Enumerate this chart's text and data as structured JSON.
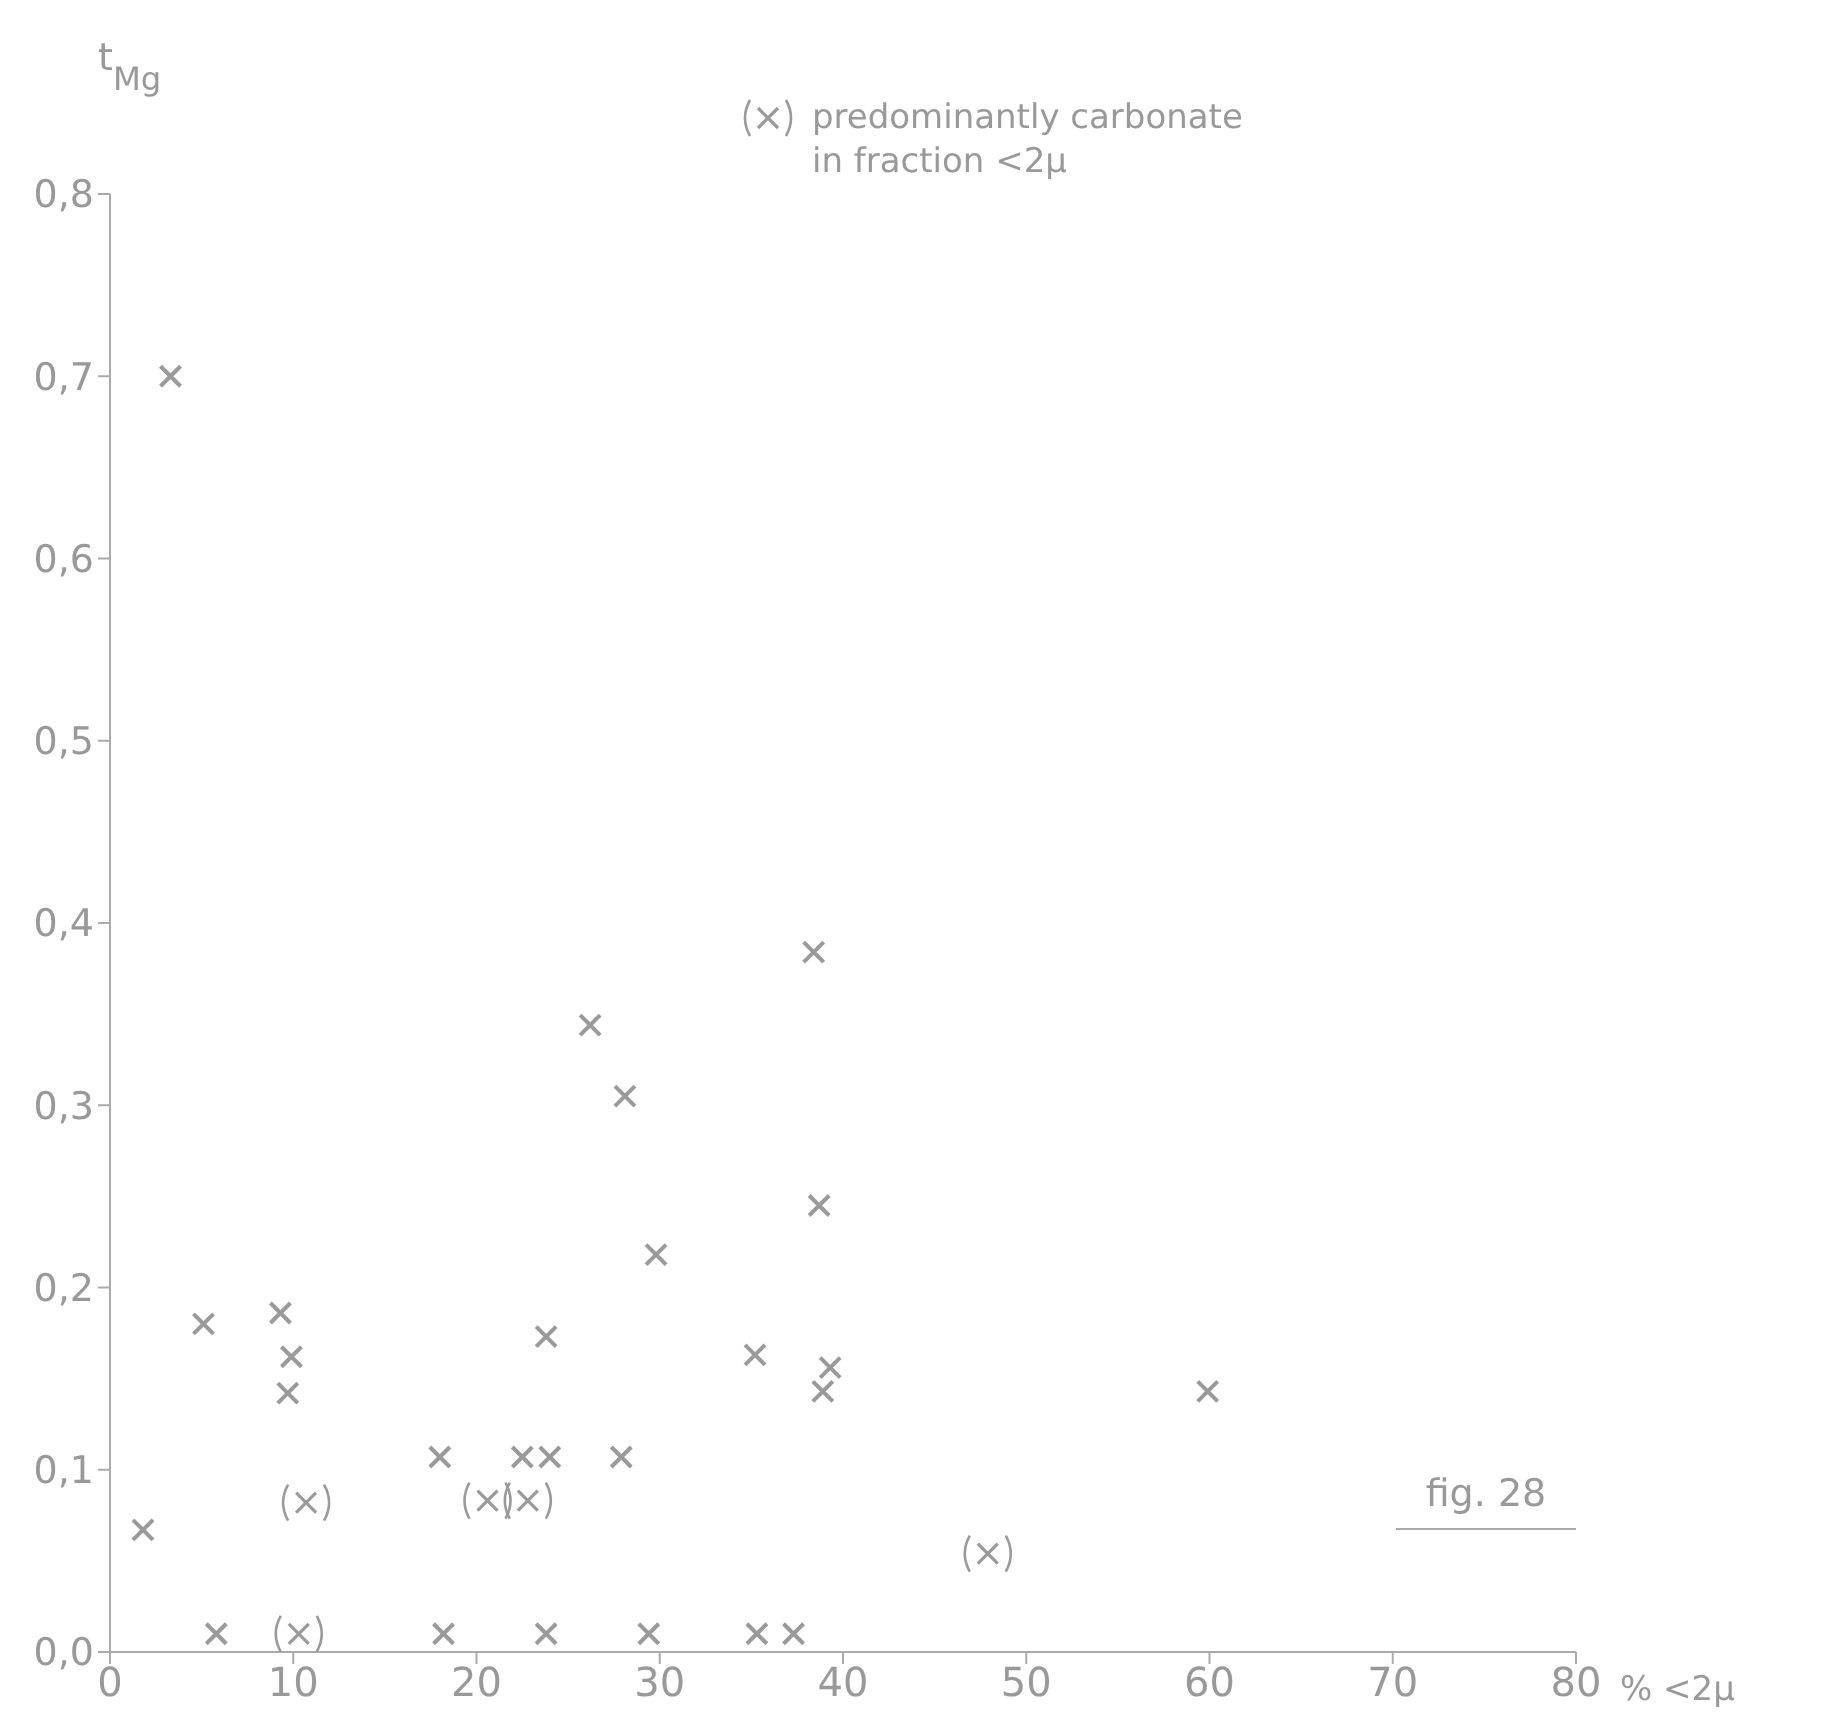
{
  "chart_data": {
    "type": "scatter",
    "ylabel": "t$_{Mg}$",
    "xlabel": "% <2μ",
    "xlim": [
      0,
      80
    ],
    "xticks": [
      0,
      10,
      20,
      30,
      40,
      50,
      60,
      70,
      80
    ],
    "ylim": [
      0,
      0.8
    ],
    "yticks": [
      {
        "value": 0,
        "label": "0,0"
      },
      {
        "value": 0.1,
        "label": "0,1"
      },
      {
        "value": 0.2,
        "label": "0,2"
      },
      {
        "value": 0.3,
        "label": "0,3"
      },
      {
        "value": 0.4,
        "label": "0,4"
      },
      {
        "value": 0.5,
        "label": "0,5"
      },
      {
        "value": 0.6,
        "label": "0,6"
      },
      {
        "value": 0.7,
        "label": "0,7"
      },
      {
        "value": 0.8,
        "label": "0,8"
      }
    ],
    "marker": "cross",
    "legend": "top right",
    "grid": false,
    "annotations": [
      "fig. 28"
    ],
    "series": [
      {
        "color": "#9a9a9a",
        "x": [
          1.8,
          3.3,
          5.1,
          5.8,
          9.3,
          9.9,
          9.7,
          18.0,
          18.2,
          22.5,
          24.0,
          23.8,
          23.8,
          27.9,
          29.8,
          29.4,
          35.2,
          35.3,
          37.3,
          38.9,
          39.3,
          38.4,
          26.2,
          28.1,
          38.7,
          59.9
        ],
        "values": [
          0.067,
          0.7,
          0.18,
          0.01,
          0.186,
          0.162,
          0.142,
          0.107,
          0.01,
          0.107,
          0.107,
          0.173,
          0.01,
          0.107,
          0.218,
          0.01,
          0.163,
          0.01,
          0.01,
          0.143,
          0.156,
          0.384,
          0.344,
          0.305,
          0.245,
          0.143
        ]
      },
      {
        "name": "predominantly carbonate in fraction <2μ",
        "color": "#9a9a9a",
        "x": [
          10.7,
          10.3,
          20.6,
          22.8,
          47.9
        ],
        "values": [
          0.082,
          0.01,
          0.083,
          0.083,
          0.054
        ]
      }
    ]
  }
}
